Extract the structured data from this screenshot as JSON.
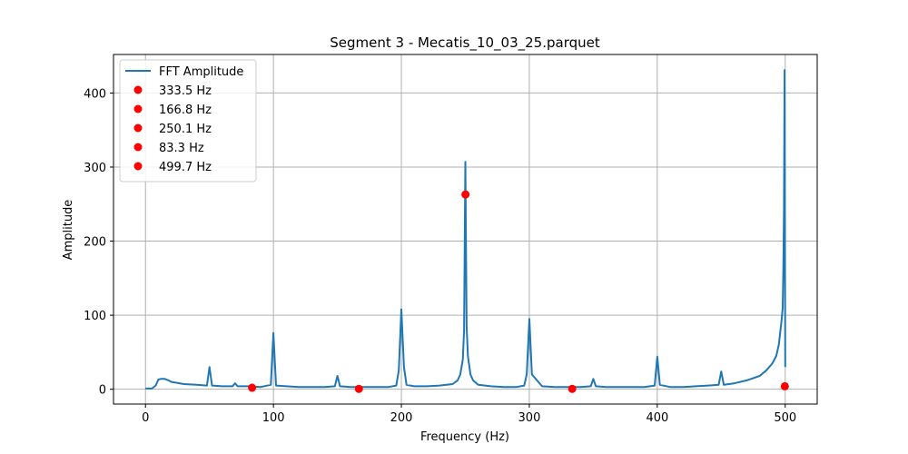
{
  "chart_data": {
    "type": "line",
    "title": "Segment 3 - Mecatis_10_03_25.parquet",
    "xlabel": "Frequency (Hz)",
    "ylabel": "Amplitude",
    "xlim": [
      -25,
      525
    ],
    "ylim": [
      -20,
      452
    ],
    "xticks": [
      0,
      100,
      200,
      300,
      400,
      500
    ],
    "yticks": [
      0,
      100,
      200,
      300,
      400
    ],
    "grid": true,
    "legend_position": "top-left",
    "colors": {
      "line": "#1f77b4",
      "points": "#ff0000"
    },
    "series": [
      {
        "name": "FFT Amplitude",
        "kind": "line",
        "color": "#1f77b4",
        "x": [
          0,
          5,
          8,
          10,
          12,
          15,
          18,
          20,
          30,
          40,
          48,
          50,
          52,
          60,
          68,
          70,
          72,
          80,
          90,
          98,
          100,
          102,
          110,
          120,
          130,
          140,
          148,
          150,
          152,
          160,
          170,
          180,
          190,
          196,
          198,
          200,
          202,
          204,
          210,
          220,
          230,
          240,
          244,
          246,
          248,
          249,
          250,
          251,
          252,
          254,
          256,
          260,
          270,
          280,
          290,
          296,
          298,
          300,
          302,
          310,
          320,
          330,
          340,
          348,
          350,
          352,
          360,
          370,
          380,
          390,
          398,
          400,
          402,
          410,
          420,
          430,
          440,
          448,
          450,
          452,
          460,
          470,
          480,
          485,
          490,
          493,
          495,
          496,
          497,
          498,
          498.5,
          499,
          499.5,
          500
        ],
        "y": [
          1,
          1,
          5,
          13,
          14,
          14,
          12,
          10,
          7,
          6,
          5,
          30,
          5,
          4,
          4,
          8,
          4,
          4,
          3,
          6,
          76,
          5,
          4,
          3,
          3,
          3,
          4,
          18,
          4,
          3,
          3,
          3,
          3,
          5,
          25,
          108,
          30,
          6,
          4,
          4,
          5,
          7,
          12,
          20,
          40,
          80,
          307,
          85,
          45,
          20,
          12,
          6,
          4,
          3,
          3,
          5,
          20,
          95,
          20,
          4,
          3,
          3,
          3,
          4,
          14,
          4,
          3,
          3,
          3,
          3,
          5,
          44,
          6,
          3,
          3,
          4,
          5,
          6,
          24,
          6,
          8,
          12,
          18,
          25,
          35,
          45,
          60,
          75,
          90,
          110,
          160,
          240,
          431,
          30
        ]
      },
      {
        "kind": "points",
        "color": "#ff0000",
        "points": [
          {
            "label": "333.5 Hz",
            "x": 333.5,
            "y": 0.5
          },
          {
            "label": "166.8 Hz",
            "x": 166.8,
            "y": 0.5
          },
          {
            "label": "250.1 Hz",
            "x": 250.1,
            "y": 263
          },
          {
            "label": "83.3 Hz",
            "x": 83.3,
            "y": 2
          },
          {
            "label": "499.7 Hz",
            "x": 499.7,
            "y": 4
          }
        ]
      }
    ]
  }
}
